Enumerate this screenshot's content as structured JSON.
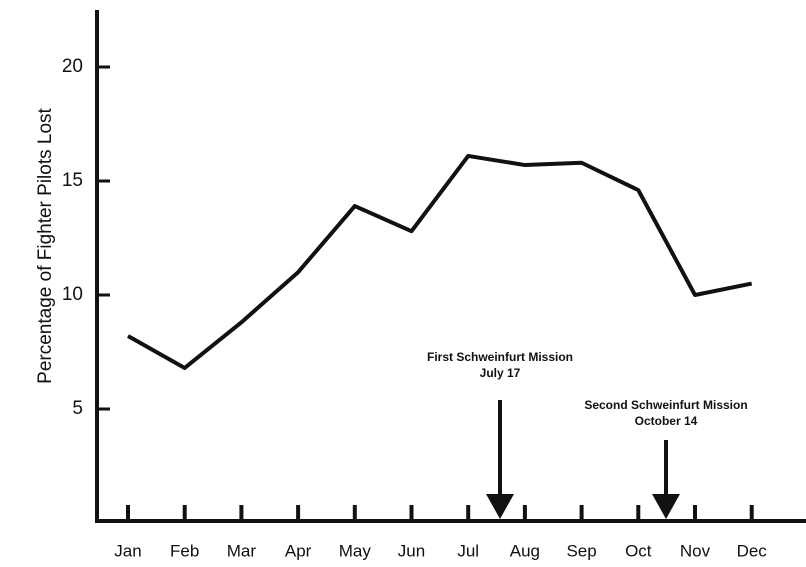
{
  "chart_data": {
    "type": "line",
    "y_label": "Percentage of Fighter Pilots Lost",
    "categories": [
      "Jan",
      "Feb",
      "Mar",
      "Apr",
      "May",
      "Jun",
      "Jul",
      "Aug",
      "Sep",
      "Oct",
      "Nov",
      "Dec"
    ],
    "values": [
      8.2,
      6.8,
      8.8,
      11.0,
      13.9,
      12.8,
      16.1,
      15.7,
      15.8,
      14.6,
      10.0,
      10.5
    ],
    "color": "#111111",
    "ylim": [
      0,
      22.5
    ],
    "yticks": [
      5,
      10,
      15,
      20
    ],
    "annotations": [
      {
        "text": [
          "First Schweinfurt Mission",
          "July 17"
        ]
      },
      {
        "text": [
          "Second Schweinfurt Mission",
          "October 14"
        ]
      }
    ]
  }
}
